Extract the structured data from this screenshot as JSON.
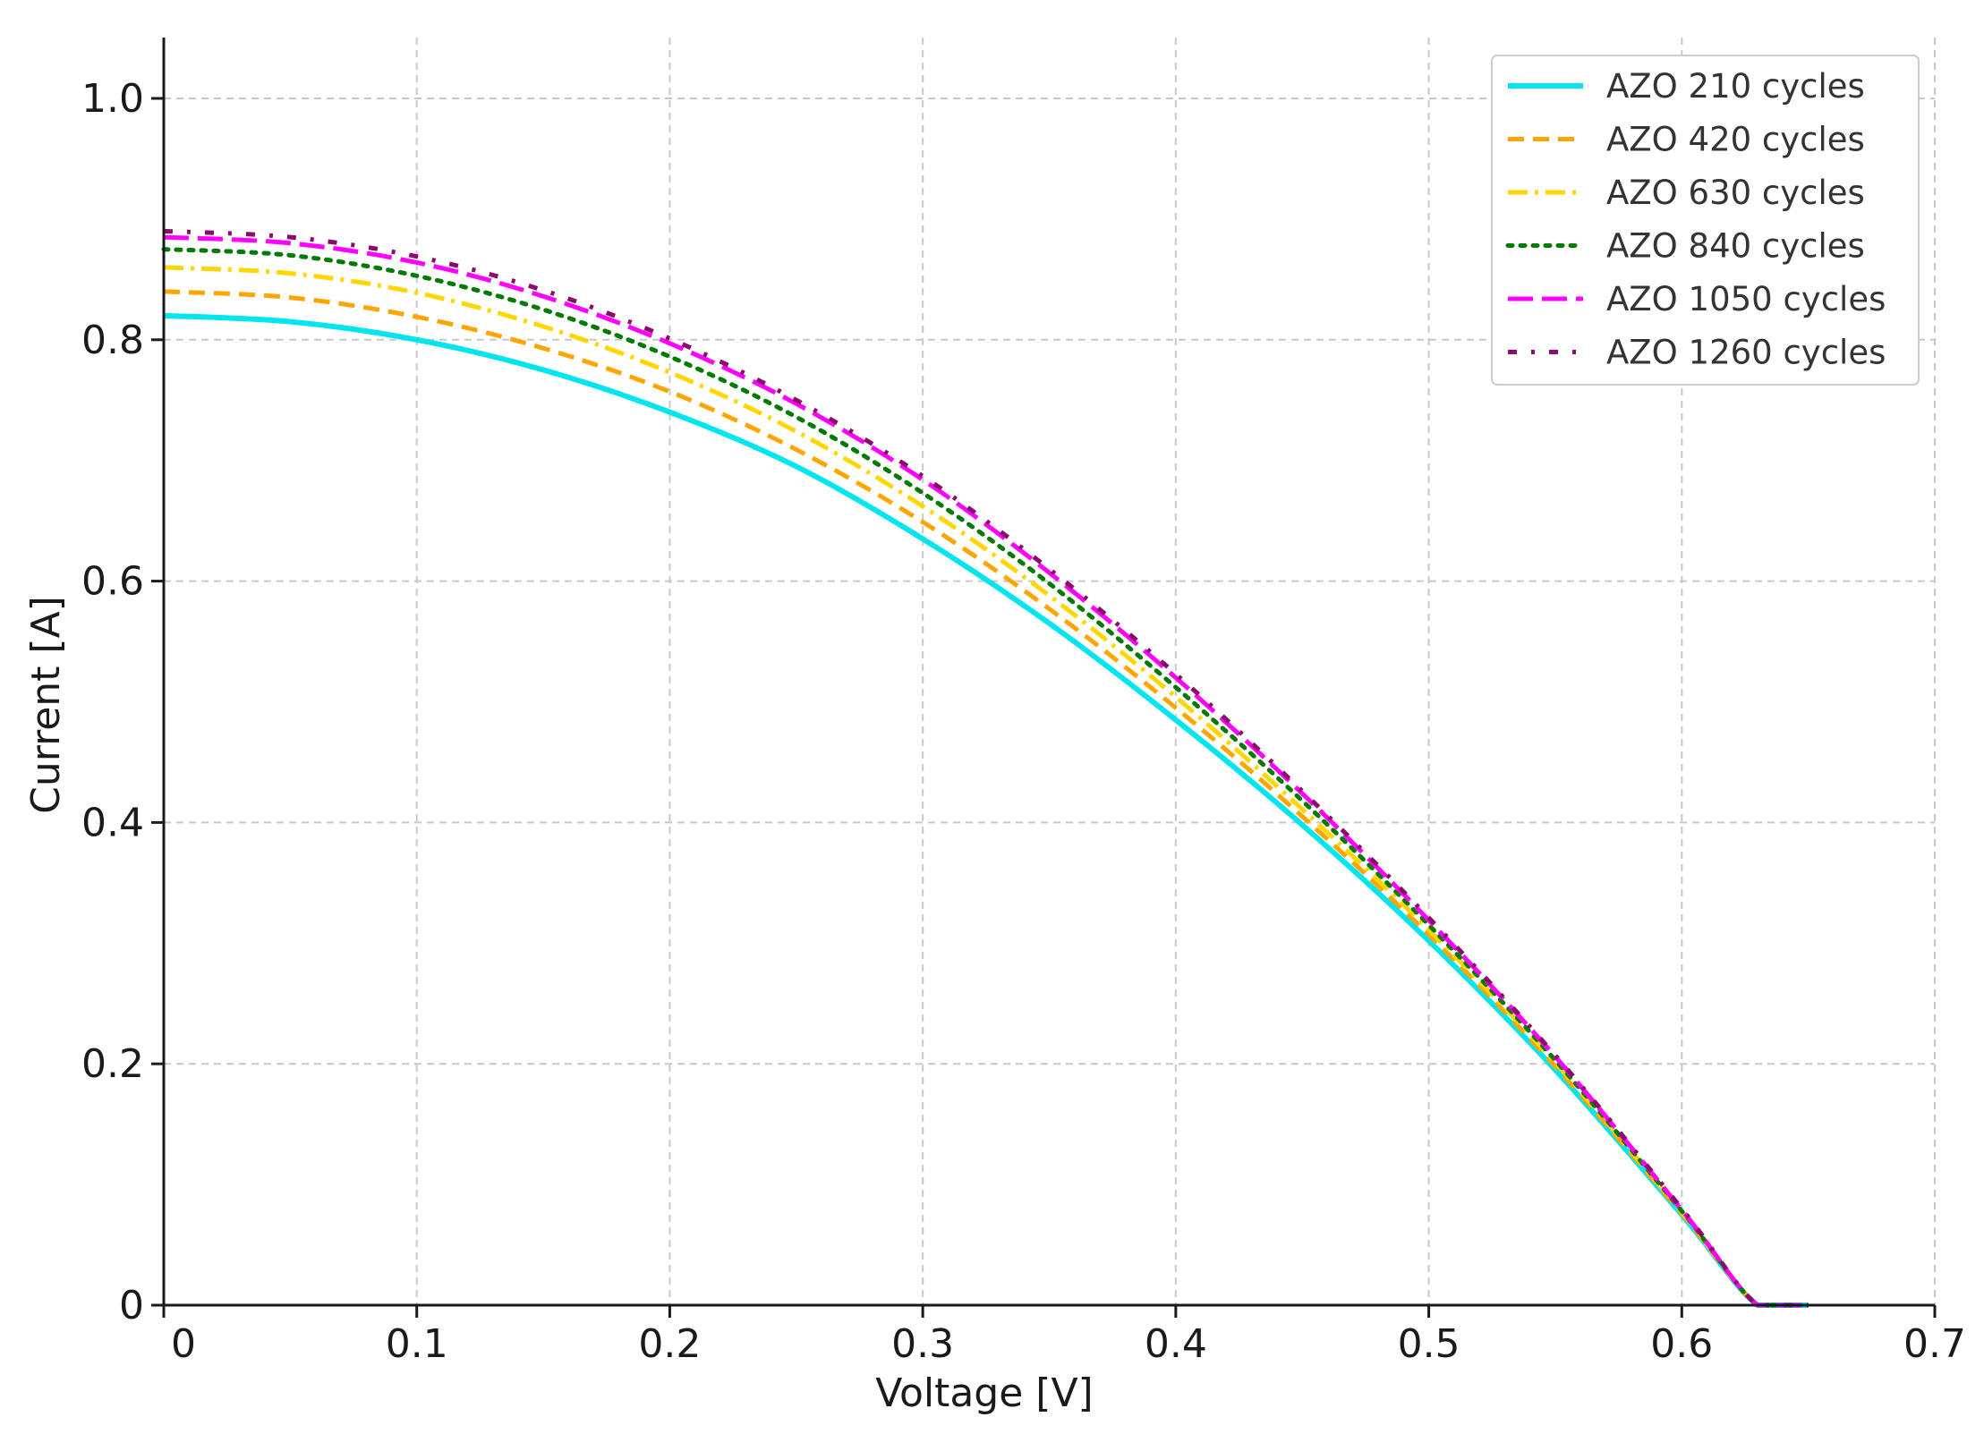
{
  "chart_data": {
    "type": "line",
    "title": "",
    "xlabel": "Voltage [V]",
    "ylabel": "Current [A]",
    "xlim": [
      0,
      0.7
    ],
    "ylim": [
      0,
      1.05
    ],
    "xticks": [
      0,
      0.1,
      0.2,
      0.3,
      0.4,
      0.5,
      0.6,
      0.7
    ],
    "xtick_labels": [
      "0",
      "0.1",
      "0.2",
      "0.3",
      "0.4",
      "0.5",
      "0.6",
      "0.7"
    ],
    "yticks": [
      0,
      0.2,
      0.4,
      0.6,
      0.8,
      1.0
    ],
    "ytick_labels": [
      "0",
      "0.2",
      "0.4",
      "0.6",
      "0.8",
      "1.0"
    ],
    "grid": true,
    "legend_position": "top-right",
    "x": [
      0,
      0.05,
      0.1,
      0.15,
      0.2,
      0.25,
      0.3,
      0.35,
      0.4,
      0.45,
      0.5,
      0.55,
      0.6,
      0.63,
      0.65
    ],
    "series": [
      {
        "name": "AZO 210 cycles",
        "color": "#00e5ee",
        "dash": "solid",
        "width": 6,
        "values": [
          0.82,
          0.815,
          0.8,
          0.775,
          0.74,
          0.695,
          0.635,
          0.565,
          0.485,
          0.398,
          0.302,
          0.195,
          0.075,
          0.0,
          0.0
        ]
      },
      {
        "name": "AZO 420 cycles",
        "color": "#ffa500",
        "dash": "dashed",
        "width": 5,
        "values": [
          0.84,
          0.835,
          0.819,
          0.793,
          0.757,
          0.709,
          0.649,
          0.577,
          0.495,
          0.405,
          0.307,
          0.198,
          0.076,
          0.0,
          0.0
        ]
      },
      {
        "name": "AZO 630 cycles",
        "color": "#ffd700",
        "dash": "dashdot",
        "width": 5,
        "values": [
          0.86,
          0.855,
          0.839,
          0.811,
          0.773,
          0.724,
          0.662,
          0.588,
          0.504,
          0.411,
          0.311,
          0.201,
          0.077,
          0.0,
          0.0
        ]
      },
      {
        "name": "AZO 840 cycles",
        "color": "#007a00",
        "dash": "dotted",
        "width": 5,
        "values": [
          0.875,
          0.87,
          0.853,
          0.825,
          0.786,
          0.736,
          0.673,
          0.598,
          0.512,
          0.418,
          0.315,
          0.203,
          0.078,
          0.0,
          0.0
        ]
      },
      {
        "name": "AZO 1050 cycles",
        "color": "#ff00ff",
        "dash": "longdash",
        "width": 5,
        "values": [
          0.885,
          0.88,
          0.864,
          0.836,
          0.797,
          0.747,
          0.684,
          0.607,
          0.52,
          0.424,
          0.319,
          0.206,
          0.079,
          0.0,
          0.0
        ]
      },
      {
        "name": "AZO 1260 cycles",
        "color": "#8b0a6b",
        "dash": "sparsedashdot",
        "width": 5,
        "values": [
          0.89,
          0.885,
          0.869,
          0.841,
          0.801,
          0.75,
          0.687,
          0.61,
          0.523,
          0.426,
          0.321,
          0.207,
          0.08,
          0.0,
          0.0
        ]
      }
    ]
  }
}
